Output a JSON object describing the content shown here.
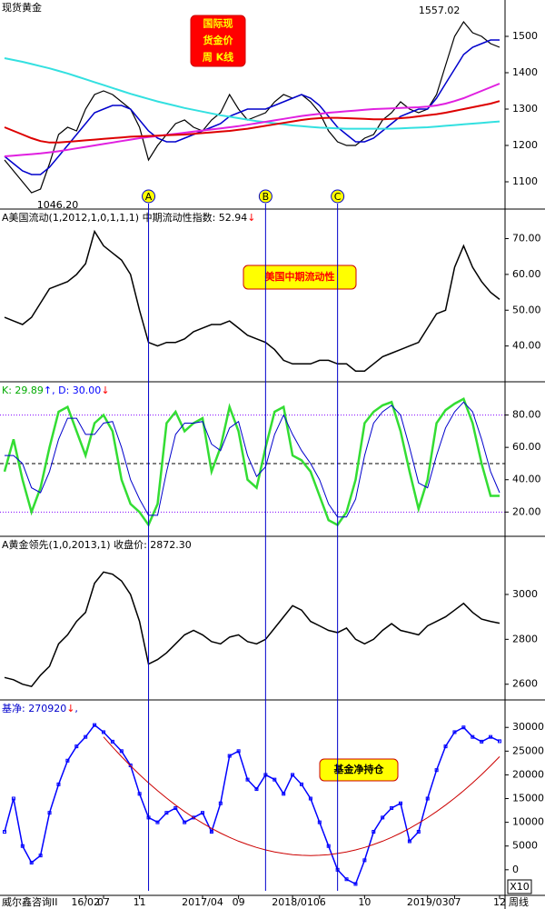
{
  "x_axis": {
    "source": "威尔鑫咨询II",
    "categories": [
      null,
      null,
      null,
      null,
      null,
      null,
      null,
      null,
      null,
      "16/02",
      null,
      "07",
      null,
      null,
      null,
      "11",
      null,
      null,
      null,
      null,
      null,
      null,
      "2017/04",
      null,
      null,
      null,
      "09",
      null,
      null,
      null,
      null,
      null,
      "2018/01",
      null,
      null,
      "06",
      null,
      null,
      null,
      null,
      "10",
      null,
      null,
      null,
      null,
      null,
      null,
      "2019/03",
      null,
      null,
      "07",
      null,
      null,
      null,
      null,
      "12"
    ],
    "unit": "周线"
  },
  "events": [
    {
      "label": "A",
      "at": 16
    },
    {
      "label": "B",
      "at": 29
    },
    {
      "label": "C",
      "at": 37
    }
  ],
  "chart_data": [
    {
      "type": "line",
      "header": [
        {
          "text": "现货黄金",
          "color": "#000000"
        }
      ],
      "ylim": [
        1025,
        1600
      ],
      "yticks": [
        1100,
        1200,
        1300,
        1400,
        1500
      ],
      "annotations": [
        {
          "label": "1557.02",
          "at": 51
        },
        {
          "label": "1046.20",
          "at": 3
        }
      ],
      "note": {
        "lines": [
          "国际现",
          "货金价",
          "周 K线"
        ],
        "fill": "#ff0000",
        "text_color": "#ffff00"
      },
      "series": [
        {
          "color": "#000000",
          "width": 1.2,
          "values": [
            1160,
            1130,
            1100,
            1070,
            1080,
            1150,
            1230,
            1250,
            1240,
            1300,
            1340,
            1350,
            1340,
            1320,
            1300,
            1250,
            1160,
            1200,
            1230,
            1260,
            1270,
            1250,
            1240,
            1270,
            1290,
            1340,
            1300,
            1270,
            1280,
            1290,
            1320,
            1340,
            1330,
            1340,
            1320,
            1290,
            1240,
            1210,
            1200,
            1200,
            1220,
            1230,
            1270,
            1290,
            1320,
            1300,
            1290,
            1300,
            1340,
            1420,
            1500,
            1540,
            1510,
            1500,
            1480,
            1470
          ]
        },
        {
          "color": "#0000cc",
          "width": 1.5,
          "values": [
            1170,
            1150,
            1130,
            1120,
            1120,
            1140,
            1170,
            1200,
            1230,
            1260,
            1290,
            1300,
            1310,
            1310,
            1300,
            1270,
            1240,
            1220,
            1210,
            1210,
            1220,
            1230,
            1240,
            1250,
            1260,
            1280,
            1290,
            1300,
            1300,
            1300,
            1310,
            1320,
            1330,
            1340,
            1330,
            1310,
            1280,
            1250,
            1230,
            1210,
            1210,
            1220,
            1240,
            1260,
            1280,
            1290,
            1300,
            1300,
            1330,
            1370,
            1410,
            1450,
            1470,
            1480,
            1490,
            1490
          ]
        },
        {
          "color": "#33e0e0",
          "width": 2,
          "values": [
            1440,
            1435,
            1430,
            1424,
            1418,
            1412,
            1405,
            1398,
            1390,
            1382,
            1374,
            1366,
            1358,
            1350,
            1342,
            1335,
            1328,
            1321,
            1315,
            1309,
            1303,
            1298,
            1293,
            1288,
            1283,
            1279,
            1275,
            1271,
            1267,
            1264,
            1261,
            1258,
            1255,
            1253,
            1251,
            1249,
            1248,
            1247,
            1246,
            1246,
            1246,
            1246,
            1246,
            1246,
            1247,
            1248,
            1249,
            1250,
            1252,
            1254,
            1256,
            1258,
            1260,
            1262,
            1264,
            1266
          ]
        },
        {
          "color": "#e020e0",
          "width": 2,
          "values": [
            1170,
            1172,
            1174,
            1176,
            1178,
            1181,
            1184,
            1188,
            1192,
            1196,
            1200,
            1204,
            1208,
            1212,
            1216,
            1220,
            1223,
            1226,
            1229,
            1232,
            1235,
            1238,
            1241,
            1244,
            1247,
            1250,
            1253,
            1257,
            1261,
            1265,
            1269,
            1273,
            1277,
            1281,
            1284,
            1287,
            1290,
            1292,
            1294,
            1296,
            1298,
            1300,
            1301,
            1302,
            1303,
            1304,
            1305,
            1307,
            1310,
            1315,
            1322,
            1330,
            1340,
            1350,
            1360,
            1370
          ]
        },
        {
          "color": "#dd0000",
          "width": 2,
          "values": [
            1250,
            1240,
            1230,
            1220,
            1212,
            1208,
            1208,
            1210,
            1212,
            1214,
            1216,
            1218,
            1220,
            1222,
            1224,
            1225,
            1226,
            1227,
            1228,
            1229,
            1230,
            1232,
            1234,
            1236,
            1238,
            1240,
            1243,
            1246,
            1250,
            1254,
            1258,
            1262,
            1266,
            1270,
            1273,
            1275,
            1276,
            1276,
            1275,
            1274,
            1273,
            1272,
            1272,
            1273,
            1275,
            1277,
            1280,
            1283,
            1286,
            1290,
            1295,
            1300,
            1305,
            1310,
            1315,
            1322
          ]
        }
      ]
    },
    {
      "type": "line",
      "header": [
        {
          "text": "A美国流动(1,2012,1,0,1,1,1)  中期流动性指数: 52.94",
          "color": "#000000"
        },
        {
          "text": "↓",
          "color": "#ff0000"
        }
      ],
      "ylim": [
        30,
        78
      ],
      "yticks": [
        {
          "value": 40,
          "label": "40.00"
        },
        {
          "value": 50,
          "label": "50.00"
        },
        {
          "value": 60,
          "label": "60.00"
        },
        {
          "value": 70,
          "label": "70.00"
        }
      ],
      "note": {
        "lines": [
          "美国中期流动性"
        ],
        "fill": "#ffff00",
        "text_color": "#ff0000"
      },
      "series": [
        {
          "color": "#000000",
          "width": 1.5,
          "values": [
            48,
            47,
            46,
            48,
            52,
            56,
            57,
            58,
            60,
            63,
            72,
            68,
            66,
            64,
            60,
            50,
            41,
            40,
            41,
            41,
            42,
            44,
            45,
            46,
            46,
            47,
            45,
            43,
            42,
            41,
            39,
            36,
            35,
            35,
            35,
            36,
            36,
            35,
            35,
            33,
            33,
            35,
            37,
            38,
            39,
            40,
            41,
            45,
            49,
            50,
            62,
            68,
            62,
            58,
            55,
            53
          ]
        }
      ]
    },
    {
      "type": "line",
      "header": [
        {
          "text": "K: 29.89",
          "color": "#00aa00"
        },
        {
          "text": "↑",
          "color": "#0000ff"
        },
        {
          "text": ", D: 30.00",
          "color": "#0000ff"
        },
        {
          "text": "↓",
          "color": "#ff0000"
        }
      ],
      "ylim": [
        5,
        100
      ],
      "yticks": [
        {
          "value": 20,
          "label": "20.00"
        },
        {
          "value": 40,
          "label": "40.00"
        },
        {
          "value": 60,
          "label": "60.00"
        },
        {
          "value": 80,
          "label": "80.00"
        }
      ],
      "hlines": [
        {
          "value": 80,
          "color": "#8000ff",
          "dash": "1,2"
        },
        {
          "value": 50,
          "color": "#000000",
          "dash": "4,3"
        },
        {
          "value": 20,
          "color": "#8000ff",
          "dash": "1,2"
        }
      ],
      "series": [
        {
          "color": "#33dd33",
          "width": 2.5,
          "values": [
            45,
            65,
            40,
            20,
            35,
            60,
            82,
            85,
            70,
            55,
            75,
            80,
            70,
            40,
            25,
            20,
            12,
            25,
            75,
            82,
            70,
            75,
            78,
            45,
            60,
            85,
            70,
            40,
            35,
            60,
            82,
            85,
            55,
            52,
            45,
            30,
            15,
            12,
            20,
            40,
            75,
            82,
            86,
            88,
            70,
            45,
            22,
            40,
            75,
            83,
            87,
            90,
            75,
            50,
            30,
            30
          ]
        },
        {
          "color": "#0000cc",
          "width": 1,
          "values": [
            55,
            55,
            50,
            35,
            32,
            45,
            65,
            78,
            78,
            68,
            68,
            75,
            76,
            60,
            40,
            28,
            18,
            18,
            45,
            68,
            75,
            75,
            76,
            62,
            58,
            72,
            76,
            55,
            42,
            48,
            68,
            80,
            68,
            58,
            50,
            40,
            25,
            17,
            17,
            28,
            55,
            75,
            82,
            86,
            80,
            60,
            38,
            35,
            55,
            72,
            82,
            88,
            82,
            65,
            45,
            32
          ]
        }
      ]
    },
    {
      "type": "line",
      "header": [
        {
          "text": "A黄金领先(1,0,2013,1) 收盘价: 2872.30",
          "color": "#000000"
        }
      ],
      "ylim": [
        2530,
        3255
      ],
      "yticks": [
        2600,
        2800,
        3000
      ],
      "series": [
        {
          "color": "#000000",
          "width": 1.5,
          "values": [
            2630,
            2620,
            2600,
            2590,
            2640,
            2680,
            2780,
            2820,
            2880,
            2920,
            3050,
            3100,
            3090,
            3060,
            3000,
            2880,
            2690,
            2710,
            2740,
            2780,
            2820,
            2840,
            2820,
            2790,
            2780,
            2810,
            2820,
            2790,
            2780,
            2800,
            2850,
            2900,
            2950,
            2930,
            2880,
            2860,
            2840,
            2830,
            2850,
            2800,
            2780,
            2800,
            2840,
            2870,
            2840,
            2830,
            2820,
            2860,
            2880,
            2900,
            2930,
            2960,
            2920,
            2890,
            2880,
            2872
          ]
        }
      ]
    },
    {
      "type": "line",
      "header": [
        {
          "text": "基净: 270920",
          "color": "#0000cc"
        },
        {
          "text": "↓",
          "color": "#ff0000"
        },
        {
          "text": ",",
          "color": "#0000cc"
        }
      ],
      "ylim": [
        -5400,
        35600
      ],
      "yticks": [
        0,
        5000,
        10000,
        15000,
        20000,
        25000,
        30000
      ],
      "note": {
        "lines": [
          "基金净持仓"
        ],
        "fill": "#ffff00",
        "text_color": "#000000"
      },
      "scale_note": "X10",
      "series": [
        {
          "color": "#0000ff",
          "width": 1.5,
          "markers": true,
          "values": [
            8000,
            15000,
            5000,
            1500,
            3000,
            12000,
            18000,
            23000,
            26000,
            28000,
            30500,
            29000,
            27000,
            25000,
            22000,
            16000,
            11000,
            10000,
            12000,
            13000,
            10000,
            11000,
            12000,
            8000,
            14000,
            24000,
            25000,
            19000,
            17000,
            20000,
            19000,
            16000,
            20000,
            18000,
            15000,
            10000,
            5000,
            0,
            -2000,
            -3000,
            2000,
            8000,
            11000,
            13000,
            14000,
            6000,
            8000,
            15000,
            21000,
            26000,
            29000,
            30000,
            28000,
            27000,
            28000,
            27092
          ]
        },
        {
          "color": "#cc0000",
          "width": 1,
          "values": [
            null,
            null,
            null,
            null,
            null,
            null,
            null,
            null,
            null,
            null,
            null,
            28000,
            25870,
            23840,
            21900,
            20060,
            18310,
            16660,
            15100,
            13630,
            12260,
            10990,
            9810,
            8720,
            7730,
            6830,
            6020,
            5320,
            4700,
            4180,
            3760,
            3430,
            3190,
            3050,
            3000,
            3050,
            3190,
            3430,
            3760,
            4180,
            4700,
            5320,
            6020,
            6830,
            7730,
            8720,
            9810,
            10990,
            12260,
            13630,
            15100,
            16660,
            18310,
            20060,
            21900,
            23840
          ]
        }
      ]
    }
  ]
}
